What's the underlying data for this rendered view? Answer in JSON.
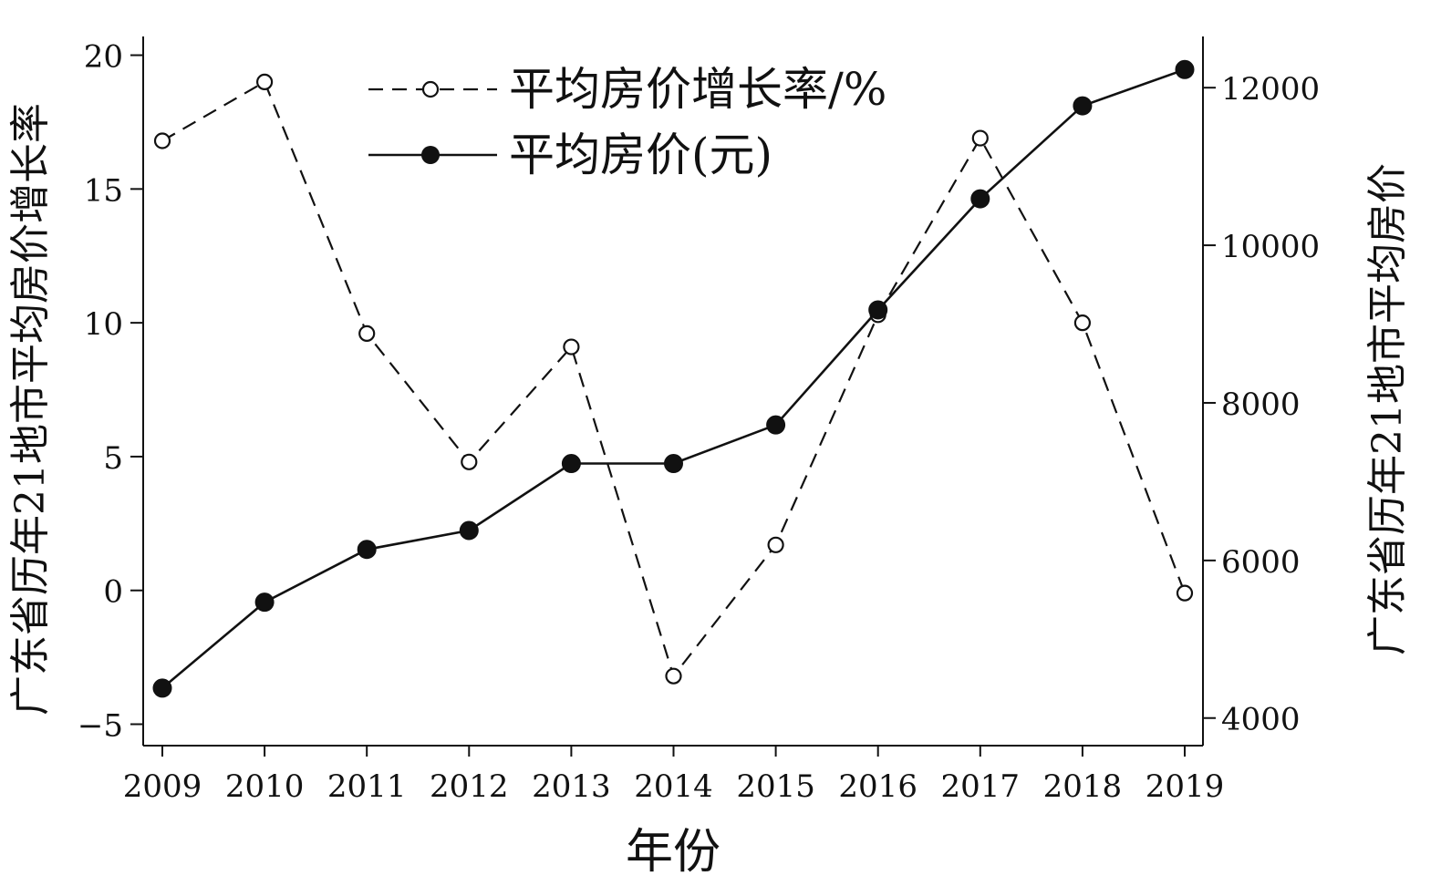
{
  "chart_data": {
    "type": "line",
    "title": "",
    "xlabel": "年份",
    "ylabel_left": "广东省历年21地市平均房价增长率",
    "ylabel_right": "广东省历年21地市平均房价",
    "categories": [
      "2009",
      "2010",
      "2011",
      "2012",
      "2013",
      "2014",
      "2015",
      "2016",
      "2017",
      "2018",
      "2019"
    ],
    "left_axis": {
      "min": -5.8,
      "max": 20.7,
      "ticks": [
        20,
        15,
        10,
        5,
        0,
        -5
      ],
      "tick_labels": [
        "20",
        "15",
        "10",
        "5",
        "0",
        "−5"
      ]
    },
    "right_axis": {
      "min": 3650,
      "max": 12650,
      "ticks": [
        12000,
        10000,
        8000,
        6000,
        4000
      ],
      "tick_labels": [
        "12000",
        "10000",
        "8000",
        "6000",
        "4000"
      ]
    },
    "series": [
      {
        "name": "平均房价增长率/%",
        "axis": "left",
        "style": "dashed",
        "marker": "open-circle",
        "values": [
          16.8,
          19.0,
          9.6,
          4.8,
          9.1,
          -3.2,
          1.7,
          10.3,
          16.9,
          10.0,
          -0.1
        ]
      },
      {
        "name": "平均房价(元)",
        "axis": "right",
        "style": "solid",
        "marker": "filled-circle",
        "values": [
          4380,
          5470,
          6140,
          6380,
          7230,
          7230,
          7720,
          9180,
          10590,
          11770,
          12230
        ]
      }
    ],
    "legend": "top-center",
    "grid": false
  }
}
